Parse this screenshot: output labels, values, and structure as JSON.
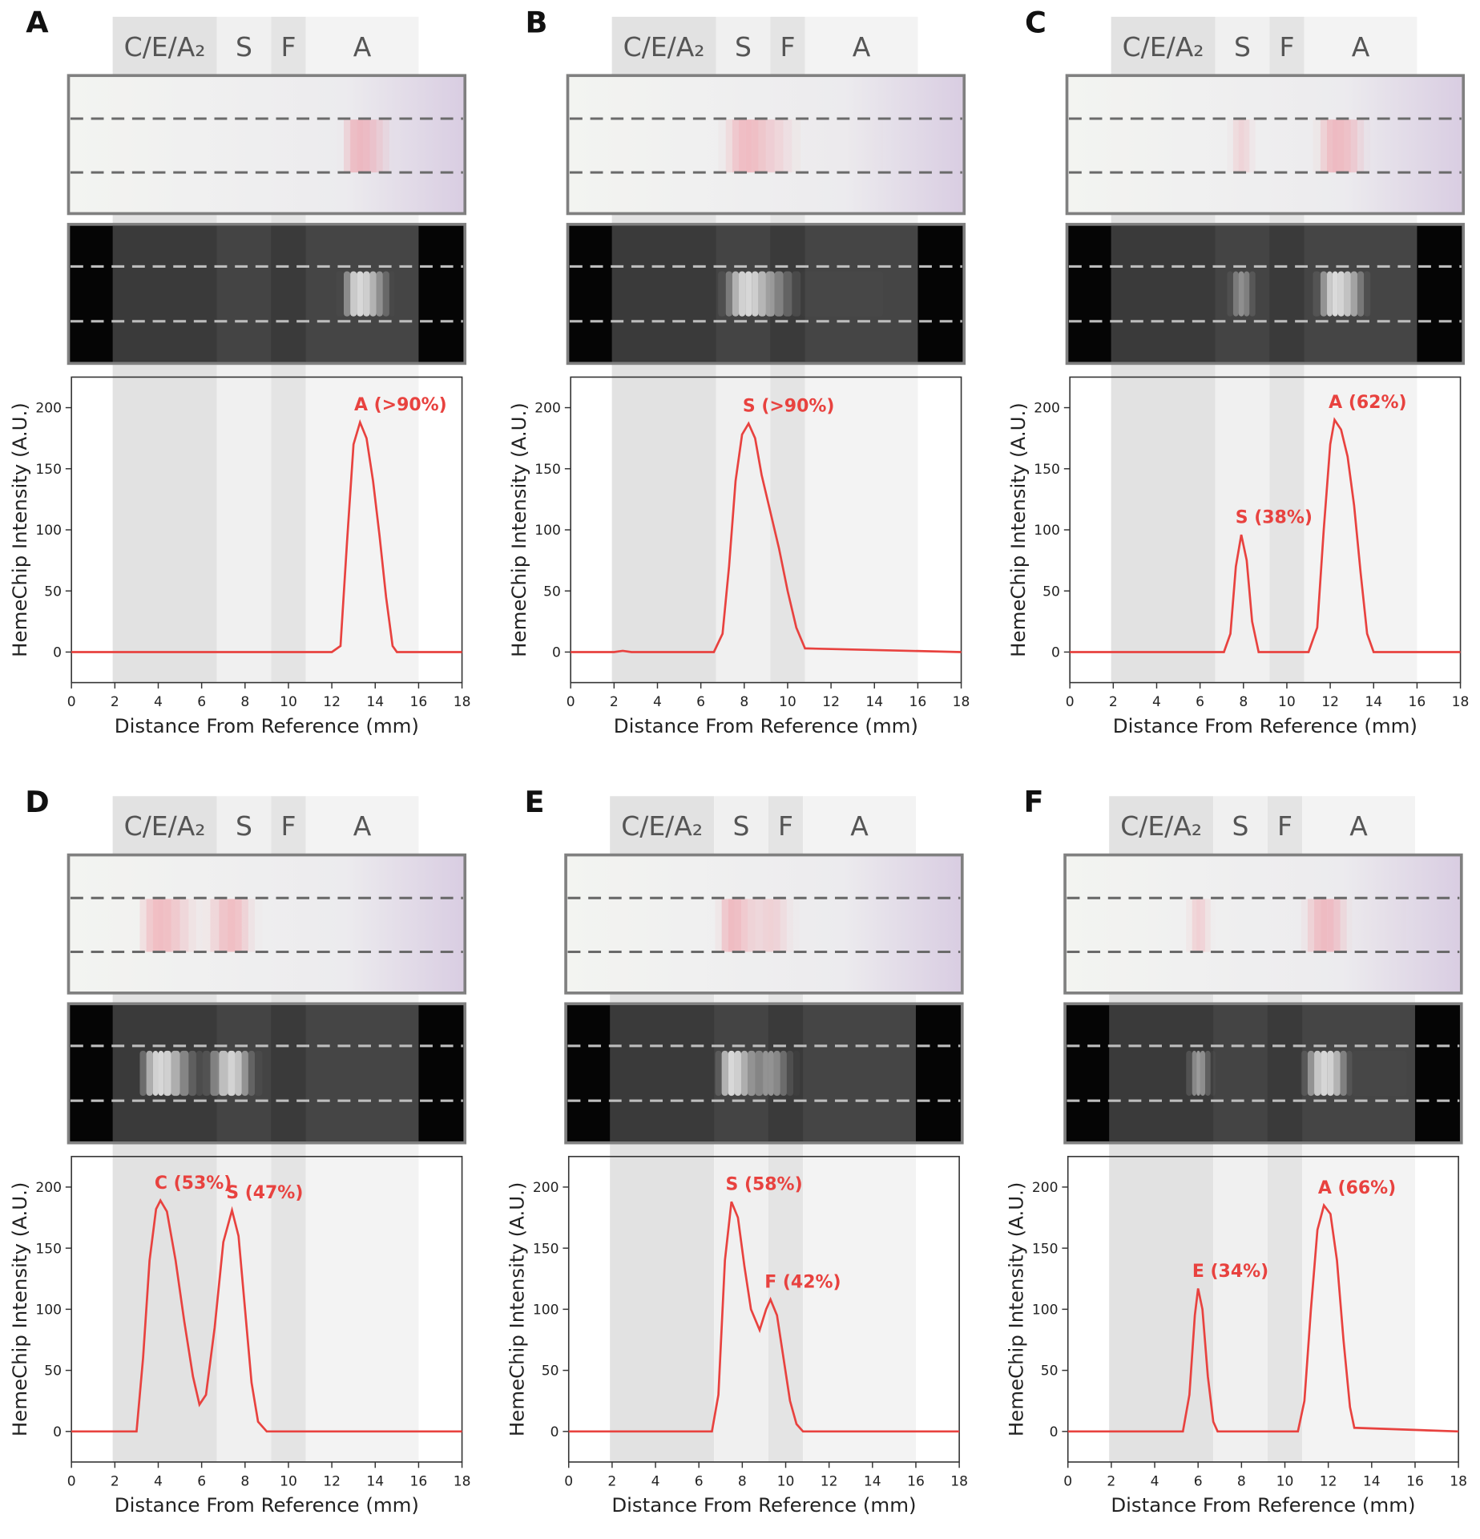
{
  "chart_data": [
    {
      "type": "line",
      "panel": "A",
      "bands": [
        {
          "label": "C/E/A₂",
          "range": [
            1.9,
            6.7
          ],
          "color": "#e2e2e2"
        },
        {
          "label": "S",
          "range": [
            6.7,
            9.2
          ],
          "color": "#f0f0f0"
        },
        {
          "label": "F",
          "range": [
            9.2,
            10.8
          ],
          "color": "#e4e4e4"
        },
        {
          "label": "A",
          "range": [
            10.8,
            16
          ],
          "color": "#f3f3f3"
        }
      ],
      "xlabel": "Distance From Reference (mm)",
      "ylabel": "HemeChip Intensity (A.U.)",
      "x": [
        0,
        12,
        12.4,
        12.7,
        13,
        13.3,
        13.6,
        13.9,
        14.2,
        14.5,
        14.8,
        15,
        18
      ],
      "values": [
        0,
        0,
        5,
        90,
        170,
        188,
        175,
        140,
        95,
        45,
        5,
        0,
        0
      ],
      "color": "#e8423f",
      "annotations": [
        "A (>90%)"
      ],
      "xlim": [
        0,
        18
      ],
      "ylim": [
        -25,
        225
      ],
      "xticks": [
        0,
        2,
        4,
        6,
        8,
        10,
        12,
        14,
        16,
        18
      ],
      "yticks": [
        0,
        50,
        100,
        150,
        200
      ]
    },
    {
      "type": "line",
      "panel": "B",
      "bands": [
        {
          "label": "C/E/A₂",
          "range": [
            1.9,
            6.7
          ],
          "color": "#e2e2e2"
        },
        {
          "label": "S",
          "range": [
            6.7,
            9.2
          ],
          "color": "#f0f0f0"
        },
        {
          "label": "F",
          "range": [
            9.2,
            10.8
          ],
          "color": "#e4e4e4"
        },
        {
          "label": "A",
          "range": [
            10.8,
            16
          ],
          "color": "#f3f3f3"
        }
      ],
      "xlabel": "Distance From Reference (mm)",
      "ylabel": "HemeChip Intensity (A.U.)",
      "x": [
        0,
        2,
        2.4,
        2.8,
        6.6,
        7,
        7.3,
        7.6,
        7.9,
        8.2,
        8.5,
        8.8,
        9.2,
        9.6,
        10,
        10.4,
        10.8,
        18
      ],
      "values": [
        0,
        0,
        1,
        0,
        0,
        15,
        70,
        140,
        178,
        187,
        175,
        145,
        115,
        85,
        50,
        20,
        3,
        0
      ],
      "color": "#e8423f",
      "annotations": [
        "S (>90%)"
      ],
      "xlim": [
        0,
        18
      ],
      "ylim": [
        -25,
        225
      ],
      "xticks": [
        0,
        2,
        4,
        6,
        8,
        10,
        12,
        14,
        16,
        18
      ],
      "yticks": [
        0,
        50,
        100,
        150,
        200
      ]
    },
    {
      "type": "line",
      "panel": "C",
      "bands": [
        {
          "label": "C/E/A₂",
          "range": [
            1.9,
            6.7
          ],
          "color": "#e2e2e2"
        },
        {
          "label": "S",
          "range": [
            6.7,
            9.2
          ],
          "color": "#f0f0f0"
        },
        {
          "label": "F",
          "range": [
            9.2,
            10.8
          ],
          "color": "#e4e4e4"
        },
        {
          "label": "A",
          "range": [
            10.8,
            16
          ],
          "color": "#f3f3f3"
        }
      ],
      "xlabel": "Distance From Reference (mm)",
      "ylabel": "HemeChip Intensity (A.U.)",
      "x": [
        0,
        7.1,
        7.4,
        7.65,
        7.9,
        8.15,
        8.4,
        8.7,
        11,
        11.4,
        11.7,
        12,
        12.2,
        12.5,
        12.8,
        13.1,
        13.4,
        13.7,
        14,
        18
      ],
      "values": [
        0,
        0,
        15,
        70,
        96,
        75,
        25,
        0,
        0,
        20,
        100,
        170,
        190,
        182,
        160,
        120,
        65,
        15,
        0,
        0
      ],
      "color": "#e8423f",
      "annotations": [
        "S (38%)",
        "A (62%)"
      ],
      "xlim": [
        0,
        18
      ],
      "ylim": [
        -25,
        225
      ],
      "xticks": [
        0,
        2,
        4,
        6,
        8,
        10,
        12,
        14,
        16,
        18
      ],
      "yticks": [
        0,
        50,
        100,
        150,
        200
      ]
    },
    {
      "type": "line",
      "panel": "D",
      "bands": [
        {
          "label": "C/E/A₂",
          "range": [
            1.9,
            6.7
          ],
          "color": "#e2e2e2"
        },
        {
          "label": "S",
          "range": [
            6.7,
            9.2
          ],
          "color": "#f0f0f0"
        },
        {
          "label": "F",
          "range": [
            9.2,
            10.8
          ],
          "color": "#e4e4e4"
        },
        {
          "label": "A",
          "range": [
            10.8,
            16
          ],
          "color": "#f3f3f3"
        }
      ],
      "xlabel": "Distance From Reference (mm)",
      "ylabel": "HemeChip Intensity (A.U.)",
      "x": [
        0,
        3,
        3.3,
        3.6,
        3.9,
        4.1,
        4.4,
        4.8,
        5.2,
        5.6,
        5.9,
        6.2,
        6.6,
        7,
        7.4,
        7.7,
        8,
        8.3,
        8.6,
        9,
        18
      ],
      "values": [
        0,
        0,
        60,
        140,
        182,
        189,
        180,
        140,
        90,
        45,
        22,
        30,
        85,
        155,
        181,
        160,
        100,
        40,
        8,
        0,
        0
      ],
      "color": "#e8423f",
      "annotations": [
        "C (53%)",
        "S (47%)"
      ],
      "xlim": [
        0,
        18
      ],
      "ylim": [
        -25,
        225
      ],
      "xticks": [
        0,
        2,
        4,
        6,
        8,
        10,
        12,
        14,
        16,
        18
      ],
      "yticks": [
        0,
        50,
        100,
        150,
        200
      ]
    },
    {
      "type": "line",
      "panel": "E",
      "bands": [
        {
          "label": "C/E/A₂",
          "range": [
            1.9,
            6.7
          ],
          "color": "#e2e2e2"
        },
        {
          "label": "S",
          "range": [
            6.7,
            9.2
          ],
          "color": "#f0f0f0"
        },
        {
          "label": "F",
          "range": [
            9.2,
            10.8
          ],
          "color": "#e4e4e4"
        },
        {
          "label": "A",
          "range": [
            10.8,
            16
          ],
          "color": "#f3f3f3"
        }
      ],
      "xlabel": "Distance From Reference (mm)",
      "ylabel": "HemeChip Intensity (A.U.)",
      "x": [
        0,
        6.6,
        6.9,
        7.2,
        7.5,
        7.8,
        8.1,
        8.4,
        8.8,
        9.1,
        9.3,
        9.6,
        9.9,
        10.2,
        10.5,
        10.8,
        18
      ],
      "values": [
        0,
        0,
        30,
        140,
        188,
        175,
        135,
        100,
        83,
        100,
        108,
        95,
        60,
        25,
        6,
        0,
        0
      ],
      "color": "#e8423f",
      "annotations": [
        "S (58%)",
        "F (42%)"
      ],
      "xlim": [
        0,
        18
      ],
      "ylim": [
        -25,
        225
      ],
      "xticks": [
        0,
        2,
        4,
        6,
        8,
        10,
        12,
        14,
        16,
        18
      ],
      "yticks": [
        0,
        50,
        100,
        150,
        200
      ]
    },
    {
      "type": "line",
      "panel": "F",
      "bands": [
        {
          "label": "C/E/A₂",
          "range": [
            1.9,
            6.7
          ],
          "color": "#e2e2e2"
        },
        {
          "label": "S",
          "range": [
            6.7,
            9.2
          ],
          "color": "#f0f0f0"
        },
        {
          "label": "F",
          "range": [
            9.2,
            10.8
          ],
          "color": "#e4e4e4"
        },
        {
          "label": "A",
          "range": [
            10.8,
            16
          ],
          "color": "#f3f3f3"
        }
      ],
      "xlabel": "Distance From Reference (mm)",
      "ylabel": "HemeChip Intensity (A.U.)",
      "x": [
        0,
        5.3,
        5.6,
        5.85,
        6,
        6.2,
        6.45,
        6.7,
        6.9,
        10.6,
        10.9,
        11.2,
        11.5,
        11.8,
        12.1,
        12.4,
        12.7,
        13,
        13.2,
        18
      ],
      "values": [
        0,
        0,
        30,
        95,
        117,
        100,
        45,
        8,
        0,
        0,
        25,
        100,
        165,
        185,
        178,
        140,
        75,
        20,
        3,
        0
      ],
      "color": "#e8423f",
      "annotations": [
        "E (34%)",
        "A (66%)"
      ],
      "xlim": [
        0,
        18
      ],
      "ylim": [
        -25,
        225
      ],
      "xticks": [
        0,
        2,
        4,
        6,
        8,
        10,
        12,
        14,
        16,
        18
      ],
      "yticks": [
        0,
        50,
        100,
        150,
        200
      ]
    }
  ]
}
